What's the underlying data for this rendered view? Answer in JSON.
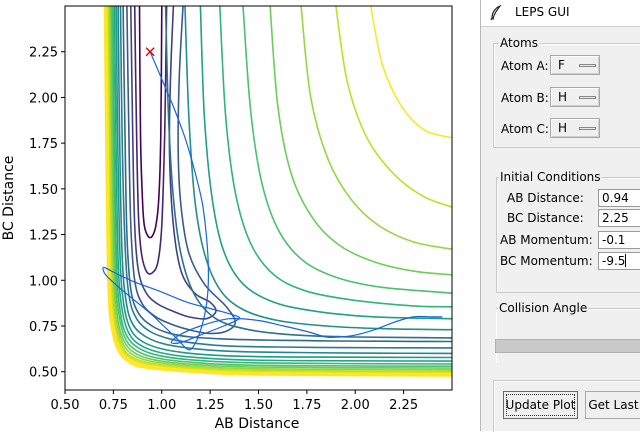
{
  "window": {
    "title": "LEPS GUI",
    "icon": "feather-icon"
  },
  "atoms_group": {
    "title": "Atoms",
    "rows": [
      {
        "label": "Atom A:",
        "value": "F"
      },
      {
        "label": "Atom B:",
        "value": "H"
      },
      {
        "label": "Atom C:",
        "value": "H"
      }
    ]
  },
  "initial_conditions": {
    "title": "Initial Conditions",
    "rows": [
      {
        "label": "AB Distance:",
        "value": "0.94"
      },
      {
        "label": "BC Distance:",
        "value": "2.25"
      },
      {
        "label": "AB Momentum:",
        "value": "-0.1"
      },
      {
        "label": "BC Momentum:",
        "value": "-9.5"
      }
    ]
  },
  "collision": {
    "title": "Collision Angle"
  },
  "buttons": {
    "update": "Update Plot",
    "get_last": "Get Last G"
  },
  "chart_data": {
    "type": "line",
    "xlabel": "AB Distance",
    "ylabel": "BC Distance",
    "xlim": [
      0.5,
      2.5
    ],
    "ylim": [
      0.4,
      2.5
    ],
    "xticks": [
      "0.50",
      "0.75",
      "1.00",
      "1.25",
      "1.50",
      "1.75",
      "2.00",
      "2.25"
    ],
    "yticks": [
      "0.50",
      "0.75",
      "1.00",
      "1.25",
      "1.50",
      "1.75",
      "2.00",
      "2.25"
    ],
    "start_marker": {
      "x": 0.94,
      "y": 2.25,
      "color": "#dd0000",
      "symbol": "x"
    },
    "trajectory": {
      "color": "#1565e0",
      "x": [
        0.94,
        1.0,
        1.06,
        1.12,
        1.17,
        1.21,
        1.23,
        1.24,
        1.24,
        1.23,
        1.21,
        1.18,
        1.14,
        1.08,
        1.01,
        0.94,
        0.86,
        0.78,
        0.71,
        0.7,
        0.76,
        0.86,
        0.99,
        1.13,
        1.27,
        1.37,
        1.4,
        1.32,
        1.2,
        1.1,
        1.05,
        1.09,
        1.2,
        1.35,
        1.5,
        1.63,
        1.75,
        1.85,
        1.92,
        2.0,
        2.1,
        2.2,
        2.3,
        2.4,
        2.45
      ],
      "y": [
        2.25,
        2.1,
        1.95,
        1.78,
        1.6,
        1.42,
        1.25,
        1.1,
        0.97,
        0.86,
        0.76,
        0.67,
        0.62,
        0.68,
        0.75,
        0.82,
        0.89,
        0.96,
        1.03,
        1.07,
        1.04,
        0.99,
        0.94,
        0.88,
        0.84,
        0.81,
        0.79,
        0.75,
        0.7,
        0.66,
        0.66,
        0.7,
        0.75,
        0.79,
        0.78,
        0.75,
        0.72,
        0.69,
        0.69,
        0.7,
        0.73,
        0.77,
        0.8,
        0.8,
        0.8
      ]
    },
    "colormap": [
      "#440154",
      "#472c7a",
      "#3b518b",
      "#2c718e",
      "#21908d",
      "#27ad81",
      "#5cc863",
      "#aadc32",
      "#fde725"
    ],
    "contours": [
      {
        "level": 0,
        "color": "#440154",
        "x": [
          0.885,
          0.89,
          0.9,
          0.91,
          0.93,
          0.95,
          0.97,
          0.985,
          0.995,
          1.0
        ],
        "y": [
          2.5,
          1.8,
          1.45,
          1.3,
          1.24,
          1.24,
          1.3,
          1.45,
          1.8,
          2.5
        ]
      },
      {
        "level": 1,
        "color": "#46256f",
        "x": [
          0.86,
          0.87,
          0.88,
          0.895,
          0.92,
          0.95,
          0.98,
          1.0,
          1.015,
          1.025
        ],
        "y": [
          2.5,
          1.8,
          1.35,
          1.15,
          1.05,
          1.04,
          1.1,
          1.3,
          1.8,
          2.5
        ]
      },
      {
        "level": 2,
        "color": "#42417f",
        "x": [
          0.84,
          0.85,
          0.86,
          0.88,
          0.92,
          0.98,
          1.06,
          1.14,
          1.23,
          1.28,
          1.25,
          1.17,
          1.1,
          1.06,
          1.04,
          1.045,
          1.06
        ],
        "y": [
          2.5,
          1.8,
          1.3,
          1.05,
          0.93,
          0.87,
          0.83,
          0.8,
          0.79,
          0.83,
          0.88,
          0.93,
          1.05,
          1.3,
          1.7,
          2.1,
          2.5
        ]
      },
      {
        "level": 3,
        "color": "#3a5a8c",
        "x": [
          0.82,
          0.83,
          0.84,
          0.86,
          0.9,
          0.97,
          1.05,
          1.14,
          1.24,
          1.33,
          1.38,
          1.33,
          1.22,
          1.14,
          1.1,
          1.085,
          1.09,
          1.11
        ],
        "y": [
          2.5,
          1.8,
          1.3,
          1.0,
          0.87,
          0.8,
          0.76,
          0.73,
          0.71,
          0.72,
          0.77,
          0.86,
          0.98,
          1.15,
          1.4,
          1.7,
          2.1,
          2.5
        ]
      },
      {
        "level": 4,
        "color": "#31688e",
        "x": [
          0.8,
          0.81,
          0.82,
          0.84,
          0.88,
          0.95,
          1.04,
          1.15,
          1.3,
          1.45,
          1.6,
          1.75,
          1.9,
          2.1,
          2.3,
          2.5
        ],
        "y": [
          2.5,
          1.8,
          1.25,
          0.95,
          0.82,
          0.75,
          0.71,
          0.69,
          0.68,
          0.675,
          0.672,
          0.67,
          0.668,
          0.667,
          0.666,
          0.665
        ]
      },
      {
        "level": 5,
        "color": "#2b7b8e",
        "x": [
          0.787,
          0.795,
          0.81,
          0.83,
          0.87,
          0.94,
          1.04,
          1.18,
          1.35,
          1.6,
          1.9,
          2.2,
          2.5
        ],
        "y": [
          2.5,
          1.8,
          1.2,
          0.92,
          0.79,
          0.72,
          0.68,
          0.655,
          0.64,
          0.635,
          0.632,
          0.631,
          0.63
        ]
      },
      {
        "level": 6,
        "color": "#25858e",
        "x": [
          0.775,
          0.782,
          0.795,
          0.815,
          0.85,
          0.92,
          1.02,
          1.18,
          1.4,
          1.7,
          2.0,
          2.5
        ],
        "y": [
          2.5,
          1.8,
          1.15,
          0.89,
          0.76,
          0.69,
          0.65,
          0.625,
          0.61,
          0.605,
          0.602,
          0.6
        ]
      },
      {
        "level": 7,
        "color": "#1f978b",
        "x": [
          0.765,
          0.772,
          0.785,
          0.805,
          0.84,
          0.9,
          1.0,
          1.15,
          1.4,
          1.8,
          2.5
        ],
        "y": [
          2.5,
          1.8,
          1.12,
          0.86,
          0.73,
          0.665,
          0.625,
          0.6,
          0.585,
          0.58,
          0.578
        ]
      },
      {
        "level": 8,
        "color": "#23a883",
        "x": [
          0.756,
          0.763,
          0.775,
          0.795,
          0.83,
          0.89,
          0.99,
          1.15,
          1.4,
          1.8,
          2.5
        ],
        "y": [
          2.5,
          1.8,
          1.1,
          0.84,
          0.71,
          0.645,
          0.605,
          0.58,
          0.565,
          0.56,
          0.558
        ]
      },
      {
        "level": 9,
        "color": "#35b779",
        "x": [
          0.748,
          0.755,
          0.767,
          0.787,
          0.82,
          0.88,
          0.98,
          1.15,
          1.5,
          2.5
        ],
        "y": [
          2.5,
          1.8,
          1.08,
          0.82,
          0.695,
          0.63,
          0.59,
          0.565,
          0.548,
          0.542
        ]
      },
      {
        "level": 10,
        "color": "#4ec36b",
        "x": [
          0.741,
          0.748,
          0.76,
          0.78,
          0.812,
          0.87,
          0.97,
          1.15,
          1.5,
          2.5
        ],
        "y": [
          2.5,
          1.8,
          1.06,
          0.805,
          0.68,
          0.615,
          0.576,
          0.552,
          0.535,
          0.53
        ]
      },
      {
        "level": 11,
        "color": "#6ccd5a",
        "x": [
          0.735,
          0.742,
          0.754,
          0.773,
          0.805,
          0.86,
          0.96,
          1.15,
          1.5,
          2.5
        ],
        "y": [
          2.5,
          1.8,
          1.045,
          0.79,
          0.668,
          0.603,
          0.565,
          0.541,
          0.525,
          0.52
        ]
      },
      {
        "level": 12,
        "color": "#8fd744",
        "x": [
          0.729,
          0.736,
          0.748,
          0.767,
          0.798,
          0.85,
          0.95,
          1.15,
          1.5,
          2.5
        ],
        "y": [
          2.5,
          1.8,
          1.03,
          0.778,
          0.657,
          0.593,
          0.556,
          0.532,
          0.516,
          0.511
        ]
      },
      {
        "level": 13,
        "color": "#b5de2b",
        "x": [
          0.724,
          0.731,
          0.742,
          0.761,
          0.792,
          0.84,
          0.94,
          1.15,
          1.5,
          2.5
        ],
        "y": [
          2.5,
          1.8,
          1.02,
          0.768,
          0.648,
          0.585,
          0.548,
          0.524,
          0.508,
          0.503
        ]
      },
      {
        "level": 14,
        "color": "#d8e219",
        "x": [
          0.719,
          0.726,
          0.737,
          0.756,
          0.787,
          0.835,
          0.93,
          1.15,
          1.5,
          2.5
        ],
        "y": [
          2.5,
          1.8,
          1.01,
          0.76,
          0.64,
          0.578,
          0.541,
          0.517,
          0.501,
          0.496
        ]
      },
      {
        "level": 15,
        "color": "#fde725",
        "x": [
          0.714,
          0.721,
          0.732,
          0.751,
          0.782,
          0.83,
          0.92,
          1.15,
          1.5,
          2.5
        ],
        "y": [
          2.5,
          1.8,
          1.0,
          0.752,
          0.633,
          0.571,
          0.535,
          0.51,
          0.494,
          0.489
        ]
      },
      {
        "level": 16,
        "color": "#fde725",
        "x": [
          0.709,
          0.716,
          0.727,
          0.746,
          0.777,
          0.825,
          0.91,
          1.15,
          1.5,
          2.5
        ],
        "y": [
          2.5,
          1.8,
          0.99,
          0.745,
          0.626,
          0.565,
          0.529,
          0.504,
          0.488,
          0.483
        ]
      },
      {
        "level": 17,
        "color": "#fde725",
        "x": [
          0.704,
          0.711,
          0.722,
          0.741,
          0.772,
          0.82,
          0.9,
          1.15,
          1.5,
          2.5
        ],
        "y": [
          2.5,
          1.8,
          0.98,
          0.738,
          0.62,
          0.559,
          0.523,
          0.498,
          0.482,
          0.477
        ]
      },
      {
        "level": 18,
        "color": "#218f8d",
        "x": [
          1.12,
          1.14,
          1.17,
          1.22,
          1.3,
          1.42,
          1.6,
          1.85,
          2.15,
          2.5
        ],
        "y": [
          2.5,
          1.9,
          1.45,
          1.15,
          0.95,
          0.84,
          0.78,
          0.75,
          0.735,
          0.73
        ]
      },
      {
        "level": 19,
        "color": "#1fa088",
        "x": [
          1.2,
          1.22,
          1.26,
          1.32,
          1.42,
          1.58,
          1.8,
          2.1,
          2.5
        ],
        "y": [
          2.5,
          1.9,
          1.45,
          1.16,
          0.98,
          0.88,
          0.83,
          0.8,
          0.79
        ]
      },
      {
        "level": 20,
        "color": "#2fb47c",
        "x": [
          1.3,
          1.33,
          1.38,
          1.46,
          1.58,
          1.75,
          2.0,
          2.3,
          2.5
        ],
        "y": [
          2.5,
          1.9,
          1.48,
          1.2,
          1.03,
          0.94,
          0.89,
          0.86,
          0.855
        ]
      },
      {
        "level": 21,
        "color": "#4ac16d",
        "x": [
          1.42,
          1.46,
          1.52,
          1.61,
          1.74,
          1.92,
          2.15,
          2.5
        ],
        "y": [
          2.5,
          1.92,
          1.52,
          1.26,
          1.1,
          1.01,
          0.96,
          0.93
        ]
      },
      {
        "level": 22,
        "color": "#6ccd5a",
        "x": [
          1.56,
          1.6,
          1.67,
          1.78,
          1.92,
          2.1,
          2.3,
          2.5
        ],
        "y": [
          2.5,
          1.95,
          1.58,
          1.34,
          1.19,
          1.1,
          1.05,
          1.03
        ]
      },
      {
        "level": 23,
        "color": "#95d840",
        "x": [
          1.72,
          1.77,
          1.86,
          1.98,
          2.12,
          2.3,
          2.5
        ],
        "y": [
          2.5,
          2.0,
          1.66,
          1.44,
          1.3,
          1.21,
          1.17
        ]
      },
      {
        "level": 24,
        "color": "#c0df25",
        "x": [
          1.9,
          1.96,
          2.06,
          2.2,
          2.35,
          2.5
        ],
        "y": [
          2.5,
          2.08,
          1.78,
          1.58,
          1.46,
          1.4
        ]
      },
      {
        "level": 25,
        "color": "#fde725",
        "x": [
          2.08,
          2.14,
          2.24,
          2.36,
          2.5
        ],
        "y": [
          2.5,
          2.18,
          1.95,
          1.82,
          1.78
        ]
      },
      {
        "level": 26,
        "color": "#2c728e",
        "x": [
          1.02,
          1.035,
          1.06,
          1.1,
          1.17,
          1.28,
          1.45,
          1.7,
          2.0,
          2.5
        ],
        "y": [
          2.5,
          1.9,
          1.45,
          1.14,
          0.92,
          0.79,
          0.73,
          0.7,
          0.69,
          0.685
        ]
      }
    ]
  }
}
